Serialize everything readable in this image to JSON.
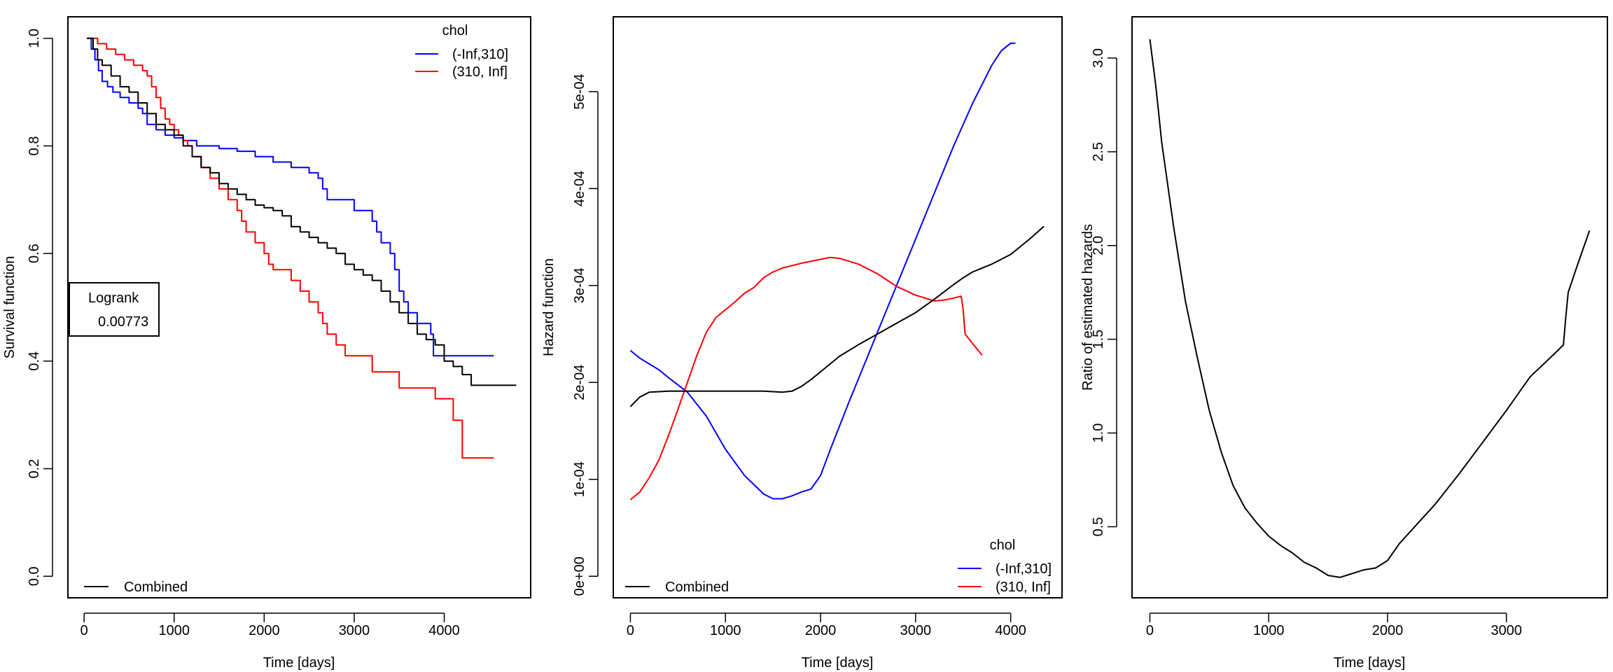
{
  "chart_data": [
    {
      "type": "line",
      "panel": "survival",
      "xlabel": "Time [days]",
      "ylabel": "Survival function",
      "xlim": [
        -180,
        4960
      ],
      "ylim": [
        -0.04,
        1.04
      ],
      "xticks": [
        0,
        1000,
        2000,
        3000,
        4000
      ],
      "xtick_labels": [
        "0",
        "1000",
        "2000",
        "3000",
        "4000"
      ],
      "yticks": [
        0.0,
        0.2,
        0.4,
        0.6,
        0.8,
        1.0
      ],
      "ytick_labels": [
        "0.0",
        "0.2",
        "0.4",
        "0.6",
        "0.8",
        "1.0"
      ],
      "step": true,
      "legend": {
        "title": "chol",
        "placement": "top-right",
        "entries": [
          {
            "label": "(-Inf,310]",
            "color": "#0000ff"
          },
          {
            "label": "(310, Inf]",
            "color": "#ff0000"
          }
        ]
      },
      "legend2": {
        "placement": "bottom-left",
        "entries": [
          {
            "label": "Combined",
            "color": "#000000"
          }
        ]
      },
      "annotation": {
        "title": "Logrank",
        "value": "0.00773"
      },
      "series": [
        {
          "name": "(-Inf,310]",
          "color": "#0000ff",
          "x": [
            40,
            80,
            120,
            160,
            200,
            260,
            320,
            400,
            500,
            600,
            650,
            700,
            800,
            900,
            1000,
            1100,
            1150,
            1250,
            1350,
            1500,
            1700,
            1900,
            2100,
            2300,
            2500,
            2600,
            2650,
            2700,
            3000,
            3200,
            3250,
            3300,
            3400,
            3450,
            3500,
            3550,
            3600,
            3700,
            3850,
            3880,
            4550
          ],
          "y": [
            1.0,
            0.98,
            0.96,
            0.94,
            0.92,
            0.91,
            0.9,
            0.89,
            0.88,
            0.87,
            0.86,
            0.84,
            0.83,
            0.82,
            0.815,
            0.81,
            0.81,
            0.8,
            0.8,
            0.795,
            0.79,
            0.78,
            0.77,
            0.76,
            0.75,
            0.74,
            0.72,
            0.7,
            0.68,
            0.66,
            0.64,
            0.62,
            0.6,
            0.57,
            0.53,
            0.51,
            0.49,
            0.47,
            0.45,
            0.41,
            0.41
          ]
        },
        {
          "name": "(310, Inf]",
          "color": "#ff0000",
          "x": [
            30,
            150,
            250,
            350,
            450,
            550,
            650,
            700,
            750,
            800,
            850,
            900,
            950,
            1000,
            1050,
            1100,
            1150,
            1200,
            1300,
            1400,
            1500,
            1600,
            1700,
            1750,
            1800,
            1900,
            2000,
            2050,
            2100,
            2300,
            2400,
            2500,
            2600,
            2650,
            2700,
            2800,
            2900,
            3000,
            3200,
            3300,
            3500,
            3700,
            3900,
            4100,
            4200,
            4550
          ],
          "y": [
            1.0,
            0.99,
            0.98,
            0.97,
            0.96,
            0.95,
            0.94,
            0.93,
            0.91,
            0.89,
            0.87,
            0.85,
            0.84,
            0.83,
            0.82,
            0.81,
            0.8,
            0.78,
            0.76,
            0.74,
            0.72,
            0.7,
            0.68,
            0.66,
            0.64,
            0.62,
            0.6,
            0.58,
            0.57,
            0.55,
            0.53,
            0.51,
            0.49,
            0.47,
            0.45,
            0.43,
            0.41,
            0.41,
            0.38,
            0.38,
            0.35,
            0.35,
            0.33,
            0.29,
            0.22,
            0.22
          ]
        },
        {
          "name": "Combined",
          "color": "#000000",
          "x": [
            30,
            100,
            150,
            200,
            300,
            400,
            500,
            600,
            700,
            800,
            900,
            1000,
            1100,
            1200,
            1300,
            1400,
            1500,
            1600,
            1700,
            1800,
            1900,
            2000,
            2100,
            2200,
            2300,
            2400,
            2500,
            2600,
            2700,
            2800,
            2900,
            3000,
            3100,
            3200,
            3300,
            3400,
            3500,
            3600,
            3700,
            3800,
            3900,
            4000,
            4100,
            4200,
            4300,
            4800
          ],
          "y": [
            1.0,
            0.98,
            0.96,
            0.95,
            0.93,
            0.91,
            0.9,
            0.88,
            0.86,
            0.84,
            0.83,
            0.82,
            0.8,
            0.78,
            0.76,
            0.75,
            0.73,
            0.72,
            0.71,
            0.7,
            0.69,
            0.685,
            0.68,
            0.67,
            0.65,
            0.64,
            0.63,
            0.62,
            0.61,
            0.6,
            0.58,
            0.57,
            0.56,
            0.55,
            0.53,
            0.51,
            0.49,
            0.47,
            0.45,
            0.44,
            0.43,
            0.4,
            0.39,
            0.375,
            0.355,
            0.355
          ]
        }
      ]
    },
    {
      "type": "line",
      "panel": "hazard",
      "xlabel": "Time [days]",
      "ylabel": "Hazard function",
      "xlim": [
        -180,
        4540
      ],
      "ylim": [
        -2.22e-05,
        0.0005772
      ],
      "xticks": [
        0,
        1000,
        2000,
        3000,
        4000
      ],
      "xtick_labels": [
        "0",
        "1000",
        "2000",
        "3000",
        "4000"
      ],
      "yticks": [
        0,
        0.0001,
        0.0002,
        0.0003,
        0.0004,
        0.0005
      ],
      "ytick_labels": [
        "0e+00",
        "1e-04",
        "2e-04",
        "3e-04",
        "4e-04",
        "5e-04"
      ],
      "step": false,
      "legend": {
        "title": "chol",
        "placement": "bottom-right",
        "entries": [
          {
            "label": "(-Inf,310]",
            "color": "#0000ff"
          },
          {
            "label": "(310, Inf]",
            "color": "#ff0000"
          }
        ]
      },
      "legend2": {
        "placement": "bottom-left",
        "entries": [
          {
            "label": "Combined",
            "color": "#000000"
          }
        ]
      },
      "series": [
        {
          "name": "(-Inf,310]",
          "color": "#0000ff",
          "x": [
            0,
            100,
            200,
            300,
            400,
            600,
            800,
            1000,
            1200,
            1400,
            1500,
            1600,
            1700,
            1800,
            1900,
            2000,
            2100,
            2200,
            2300,
            2400,
            2600,
            2800,
            3000,
            3200,
            3400,
            3600,
            3800,
            3900,
            4000,
            4050
          ],
          "y": [
            0.000233,
            0.000225,
            0.000219,
            0.000213,
            0.000205,
            0.00019,
            0.000165,
            0.000131,
            0.000104,
            8.5e-05,
            8e-05,
            8e-05,
            8.3e-05,
            8.7e-05,
            9e-05,
            0.000104,
            0.00013,
            0.000155,
            0.00018,
            0.000204,
            0.000252,
            0.0003,
            0.000348,
            0.000396,
            0.000444,
            0.000488,
            0.000527,
            0.000542,
            0.00055,
            0.00055
          ]
        },
        {
          "name": "(310, Inf]",
          "color": "#ff0000",
          "x": [
            0,
            100,
            200,
            300,
            400,
            500,
            600,
            700,
            800,
            900,
            1000,
            1100,
            1200,
            1300,
            1400,
            1500,
            1600,
            1800,
            2000,
            2100,
            2200,
            2400,
            2600,
            2800,
            3000,
            3200,
            3300,
            3400,
            3480,
            3500,
            3520,
            3600,
            3700
          ],
          "y": [
            7.9e-05,
            8.7e-05,
            0.000102,
            0.00012,
            0.000145,
            0.000172,
            0.0002,
            0.000228,
            0.000252,
            0.000267,
            0.000275,
            0.000283,
            0.000292,
            0.000298,
            0.000308,
            0.000314,
            0.000318,
            0.000323,
            0.000327,
            0.000329,
            0.000328,
            0.000322,
            0.000312,
            0.000299,
            0.00029,
            0.000284,
            0.000285,
            0.000287,
            0.000289,
            0.000275,
            0.00025,
            0.00024,
            0.000228
          ]
        },
        {
          "name": "Combined",
          "color": "#000000",
          "x": [
            0,
            100,
            200,
            400,
            600,
            800,
            1000,
            1200,
            1400,
            1600,
            1700,
            1800,
            1900,
            2000,
            2200,
            2400,
            2600,
            2800,
            3000,
            3200,
            3400,
            3500,
            3600,
            3800,
            4000,
            4200,
            4350
          ],
          "y": [
            0.000175,
            0.000185,
            0.00019,
            0.000191,
            0.000191,
            0.000191,
            0.000191,
            0.000191,
            0.000191,
            0.00019,
            0.000191,
            0.000196,
            0.000203,
            0.000211,
            0.000227,
            0.000239,
            0.00025,
            0.000261,
            0.000272,
            0.000286,
            0.000301,
            0.000308,
            0.000314,
            0.000322,
            0.000332,
            0.000348,
            0.000361
          ]
        }
      ]
    },
    {
      "type": "line",
      "panel": "ratio",
      "xlabel": "Time [days]",
      "ylabel": "Ratio of estimated hazards",
      "xlim": [
        -150,
        3850
      ],
      "ylim": [
        0.121,
        3.22
      ],
      "xticks": [
        0,
        1000,
        2000,
        3000
      ],
      "xtick_labels": [
        "0",
        "1000",
        "2000",
        "3000"
      ],
      "yticks": [
        0.5,
        1.0,
        1.5,
        2.0,
        2.5,
        3.0
      ],
      "ytick_labels": [
        "0.5",
        "1.0",
        "1.5",
        "2.0",
        "2.5",
        "3.0"
      ],
      "step": false,
      "series": [
        {
          "color": "#000000",
          "x": [
            0,
            50,
            100,
            200,
            300,
            400,
            500,
            600,
            700,
            800,
            900,
            1000,
            1100,
            1200,
            1300,
            1400,
            1500,
            1600,
            1700,
            1800,
            1900,
            2000,
            2100,
            2200,
            2400,
            2600,
            2800,
            3000,
            3200,
            3400,
            3480,
            3500,
            3520,
            3600,
            3700
          ],
          "y": [
            3.1,
            2.85,
            2.55,
            2.1,
            1.7,
            1.4,
            1.12,
            0.9,
            0.72,
            0.6,
            0.52,
            0.45,
            0.4,
            0.36,
            0.31,
            0.28,
            0.24,
            0.23,
            0.25,
            0.27,
            0.28,
            0.32,
            0.41,
            0.48,
            0.62,
            0.78,
            0.95,
            1.12,
            1.3,
            1.42,
            1.47,
            1.62,
            1.75,
            1.9,
            2.08
          ]
        }
      ]
    }
  ]
}
